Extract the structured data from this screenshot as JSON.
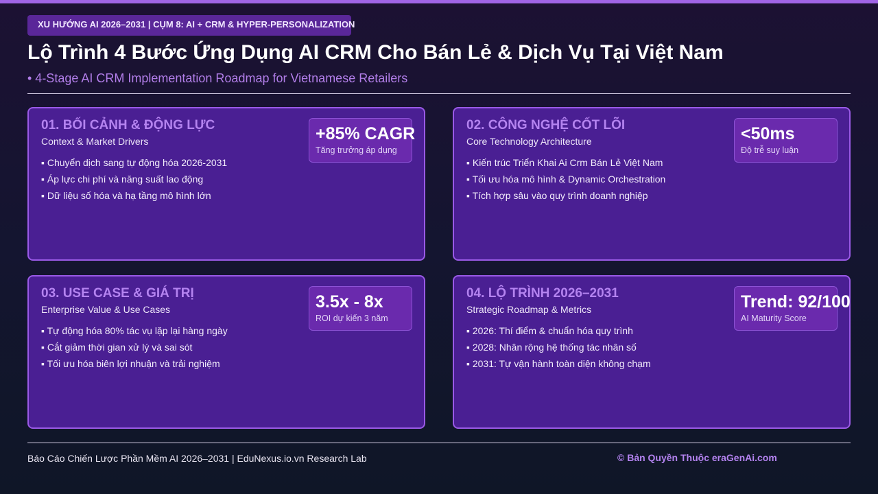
{
  "header": {
    "tag": "XU HƯỚNG AI 2026–2031 | CỤM 8: AI + CRM & HYPER-PERSONALIZATION",
    "title": "Lộ Trình 4 Bước Ứng Dụng AI CRM Cho Bán Lẻ & Dịch Vụ Tại Việt Nam",
    "subtitle": "• 4-Stage AI CRM Implementation Roadmap for Vietnamese Retailers"
  },
  "cards": [
    {
      "title": "01. BỐI CẢNH & ĐỘNG LỰC",
      "subtitle": "Context & Market Drivers",
      "bullets": [
        "Chuyển dịch sang tự động hóa 2026-2031",
        "Áp lực chi phí và năng suất lao động",
        "Dữ liệu số hóa và hạ tầng mô hình lớn"
      ],
      "metric": {
        "value": "+85% CAGR",
        "label": "Tăng trưởng áp dụng"
      }
    },
    {
      "title": "02. CÔNG NGHỆ CỐT LÕI",
      "subtitle": "Core Technology Architecture",
      "bullets": [
        "Kiến trúc Triển Khai Ai Crm Bán Lẻ Việt Nam",
        "Tối ưu hóa mô hình & Dynamic Orchestration",
        "Tích hợp sâu vào quy trình doanh nghiệp"
      ],
      "metric": {
        "value": "<50ms",
        "label": "Độ trễ suy luận"
      }
    },
    {
      "title": "03. USE CASE & GIÁ TRỊ",
      "subtitle": "Enterprise Value & Use Cases",
      "bullets": [
        "Tự động hóa 80% tác vụ lặp lại hàng ngày",
        "Cắt giảm thời gian xử lý và sai sót",
        "Tối ưu hóa biên lợi nhuận và trải nghiệm"
      ],
      "metric": {
        "value": "3.5x - 8x",
        "label": "ROI dự kiến 3 năm"
      }
    },
    {
      "title": "04. LỘ TRÌNH 2026–2031",
      "subtitle": "Strategic Roadmap & Metrics",
      "bullets": [
        "2026: Thí điểm & chuẩn hóa quy trình",
        "2028: Nhân rộng hệ thống tác nhân số",
        "2031: Tự vận hành toàn diện không chạm"
      ],
      "metric": {
        "value": "Trend: 92/100",
        "label": "AI Maturity Score"
      }
    }
  ],
  "footer": {
    "left": "Báo Cáo Chiến Lược Phần Mềm AI 2026–2031 | EduNexus.io.vn Research Lab",
    "right": "© Bản Quyền Thuộc eraGenAi.com"
  }
}
